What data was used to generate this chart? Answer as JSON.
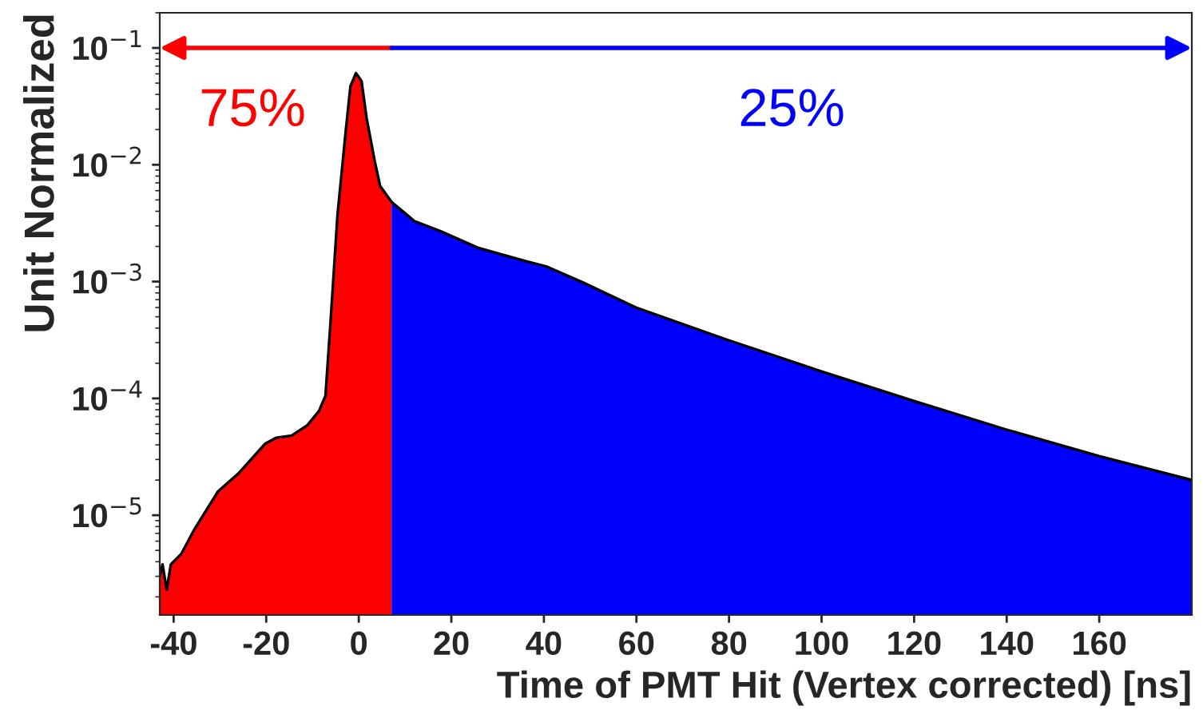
{
  "chart_data": {
    "type": "area",
    "xlabel": "Time of PMT Hit (Vertex corrected) [ns]",
    "ylabel": "Unit Normalized",
    "log": "y",
    "xlim": [
      -43,
      180
    ],
    "xticks": [
      -40,
      -20,
      0,
      20,
      40,
      60,
      80,
      100,
      120,
      140,
      160
    ],
    "ylim": [
      1.4e-06,
      0.2
    ],
    "yticks": [
      {
        "value": 1e-05,
        "label": "10$^{−5}$"
      },
      {
        "value": 0.0001,
        "label": "10$^{−4}$"
      },
      {
        "value": 0.001,
        "label": "10$^{−3}$"
      },
      {
        "value": 0.01,
        "label": "10$^{−2}$"
      },
      {
        "value": 0.1,
        "label": "10$^{−1}$"
      }
    ],
    "grid": false,
    "legend": false,
    "series": [
      {
        "color": "#ff0000",
        "x": [
          -43,
          -42.4,
          -41.5,
          -40.6,
          -38.3,
          -35.5,
          -30.4,
          -25.9,
          -20.2,
          -17.9,
          -14.5,
          -11.1,
          -8.6,
          -7.2,
          -6.1,
          -4.6,
          -2.9,
          -1.8,
          -0.6,
          0.6,
          1.7,
          3.5,
          4.6,
          7.1
        ],
        "values": [
          3e-06,
          3.8e-06,
          2.3e-06,
          3.8e-06,
          4.7e-06,
          7.6e-06,
          1.6e-05,
          2.3e-05,
          4.1e-05,
          4.6e-05,
          4.8e-05,
          5.9e-05,
          7.8e-05,
          0.000105,
          0.00045,
          0.0037,
          0.018,
          0.047,
          0.061,
          0.052,
          0.025,
          0.0105,
          0.0066,
          0.0048
        ]
      },
      {
        "color": "#0000ff",
        "x": [
          7.1,
          12.0,
          17.7,
          25.7,
          36.0,
          40.5,
          48.5,
          59.9,
          79.4,
          100,
          120,
          140,
          160,
          180
        ],
        "values": [
          0.0048,
          0.0033,
          0.0027,
          0.00195,
          0.0015,
          0.00135,
          0.00098,
          0.0006,
          0.00032,
          0.00017,
          9.5e-05,
          5.4e-05,
          3.2e-05,
          2e-05
        ]
      }
    ],
    "annotations": [
      "75%",
      "25%"
    ]
  }
}
